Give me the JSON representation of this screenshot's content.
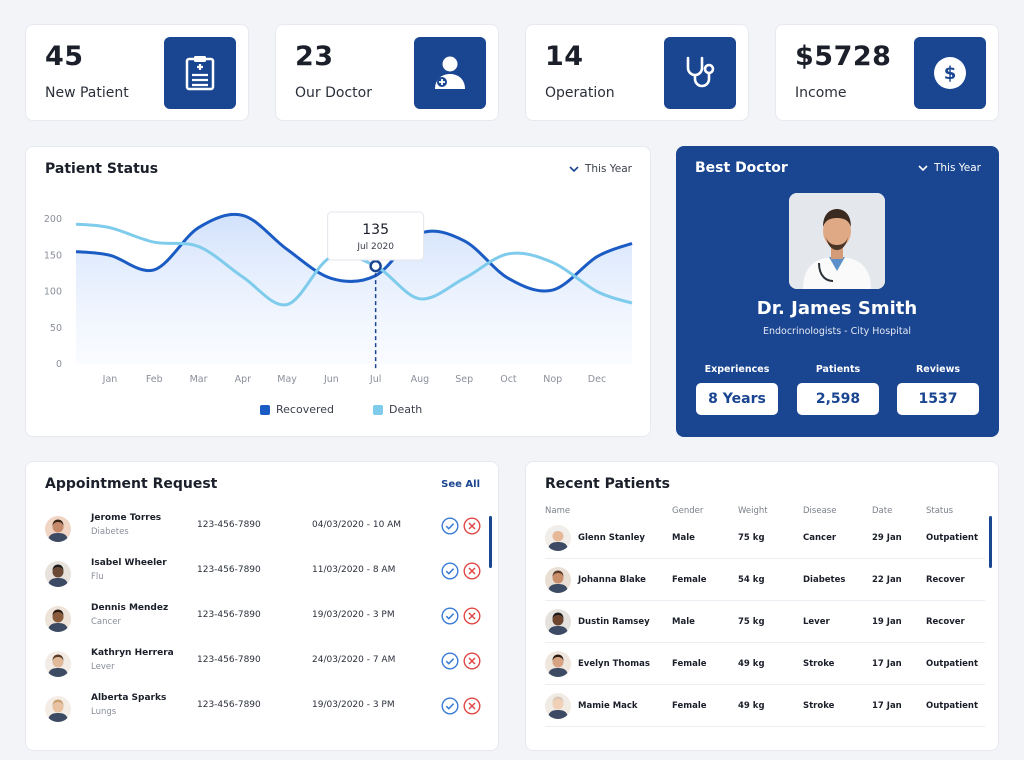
{
  "stats": [
    {
      "value": "45",
      "label": "New Patient",
      "icon": "clipboard-icon"
    },
    {
      "value": "23",
      "label": "Our Doctor",
      "icon": "doctor-icon"
    },
    {
      "value": "14",
      "label": "Operation",
      "icon": "stethoscope-icon"
    },
    {
      "value": "$5728",
      "label": "Income",
      "icon": "dollar-icon"
    }
  ],
  "patient_status": {
    "title": "Patient Status",
    "filter": "This Year",
    "tooltip": {
      "value": "135",
      "label": "Jul 2020"
    },
    "legend": [
      "Recovered",
      "Death"
    ]
  },
  "chart_data": {
    "type": "line",
    "categories": [
      "Jan",
      "Feb",
      "Mar",
      "Apr",
      "May",
      "Jun",
      "Jul",
      "Aug",
      "Sep",
      "Oct",
      "Nop",
      "Dec"
    ],
    "ylim": [
      0,
      200
    ],
    "yticks": [
      "200",
      "150",
      "100",
      "50",
      "0"
    ],
    "series": [
      {
        "name": "Recovered",
        "color": "#1a5bc4",
        "values": [
          150,
          130,
          188,
          205,
          158,
          118,
          122,
          180,
          170,
          118,
          102,
          148
        ]
      },
      {
        "name": "Death",
        "color": "#7ecbec",
        "values": [
          188,
          168,
          162,
          120,
          82,
          148,
          135,
          90,
          118,
          152,
          140,
          100
        ]
      }
    ]
  },
  "best_doctor": {
    "title": "Best Doctor",
    "filter": "This Year",
    "name": "Dr. James Smith",
    "specialty": "Endocrinologists - City Hospital",
    "stats": [
      {
        "label": "Experiences",
        "value": "8 Years"
      },
      {
        "label": "Patients",
        "value": "2,598"
      },
      {
        "label": "Reviews",
        "value": "1537"
      }
    ]
  },
  "appointments": {
    "title": "Appointment Request",
    "see_all": "See All",
    "items": [
      {
        "name": "Jerome Torres",
        "disease": "Diabetes",
        "phone": "123-456-7890",
        "datetime": "04/03/2020 - 10 AM"
      },
      {
        "name": "Isabel Wheeler",
        "disease": "Flu",
        "phone": "123-456-7890",
        "datetime": "11/03/2020 - 8 AM"
      },
      {
        "name": "Dennis Mendez",
        "disease": "Cancer",
        "phone": "123-456-7890",
        "datetime": "19/03/2020 - 3 PM"
      },
      {
        "name": "Kathryn Herrera",
        "disease": "Lever",
        "phone": "123-456-7890",
        "datetime": "24/03/2020 - 7 AM"
      },
      {
        "name": "Alberta Sparks",
        "disease": "Lungs",
        "phone": "123-456-7890",
        "datetime": "19/03/2020 - 3 PM"
      }
    ]
  },
  "recent_patients": {
    "title": "Recent Patients",
    "columns": [
      "Name",
      "Gender",
      "Weight",
      "Disease",
      "Date",
      "Status"
    ],
    "rows": [
      {
        "name": "Glenn Stanley",
        "gender": "Male",
        "weight": "75 kg",
        "disease": "Cancer",
        "date": "29 Jan",
        "status": "Outpatient"
      },
      {
        "name": "Johanna Blake",
        "gender": "Female",
        "weight": "54 kg",
        "disease": "Diabetes",
        "date": "22 Jan",
        "status": "Recover"
      },
      {
        "name": "Dustin Ramsey",
        "gender": "Male",
        "weight": "75 kg",
        "disease": "Lever",
        "date": "19 Jan",
        "status": "Recover"
      },
      {
        "name": "Evelyn Thomas",
        "gender": "Female",
        "weight": "49 kg",
        "disease": "Stroke",
        "date": "17 Jan",
        "status": "Outpatient"
      },
      {
        "name": "Mamie Mack",
        "gender": "Female",
        "weight": "49 kg",
        "disease": "Stroke",
        "date": "17 Jan",
        "status": "Outpatient"
      }
    ]
  },
  "colors": {
    "primary": "#1a4591",
    "recovered": "#1a5bc4",
    "death": "#7ecbec",
    "accept": "#3a7bd5",
    "reject": "#e04848"
  }
}
